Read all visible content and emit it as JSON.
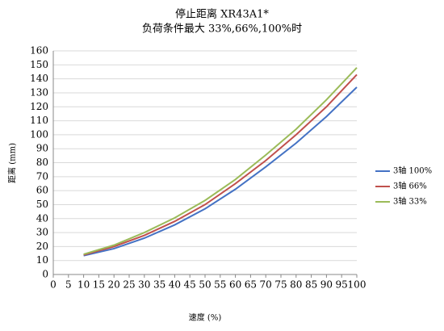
{
  "chart_data": {
    "type": "line",
    "title": "停止距离 XR43A1*",
    "subtitle": "负荷条件最大 33%,66%,100%时",
    "x_label": "速度 (%)",
    "y_label": "距离 (mm)",
    "x": [
      10,
      20,
      30,
      40,
      50,
      60,
      70,
      80,
      90,
      100
    ],
    "series": [
      {
        "name": "3轴 100%",
        "color": "#4472c4",
        "values": [
          13.5,
          18.5,
          26,
          35.5,
          47,
          61,
          77,
          94,
          113,
          134
        ]
      },
      {
        "name": "3轴 66%",
        "color": "#c0504d",
        "values": [
          14,
          20,
          28,
          38,
          50,
          65,
          81.5,
          100,
          120,
          143
        ]
      },
      {
        "name": "3轴 33%",
        "color": "#9bbb59",
        "values": [
          14.5,
          21,
          30,
          40.5,
          53,
          68,
          85.5,
          104,
          125,
          148
        ]
      }
    ],
    "xlim": [
      0,
      100
    ],
    "xticks": [
      0,
      5,
      10,
      15,
      20,
      25,
      30,
      35,
      40,
      45,
      50,
      55,
      60,
      65,
      70,
      75,
      80,
      85,
      90,
      95,
      100
    ],
    "ylim": [
      0,
      160
    ],
    "yticks": [
      0,
      10,
      20,
      30,
      40,
      50,
      60,
      70,
      80,
      90,
      100,
      110,
      120,
      130,
      140,
      150,
      160
    ],
    "grid": true,
    "legend": "right"
  }
}
